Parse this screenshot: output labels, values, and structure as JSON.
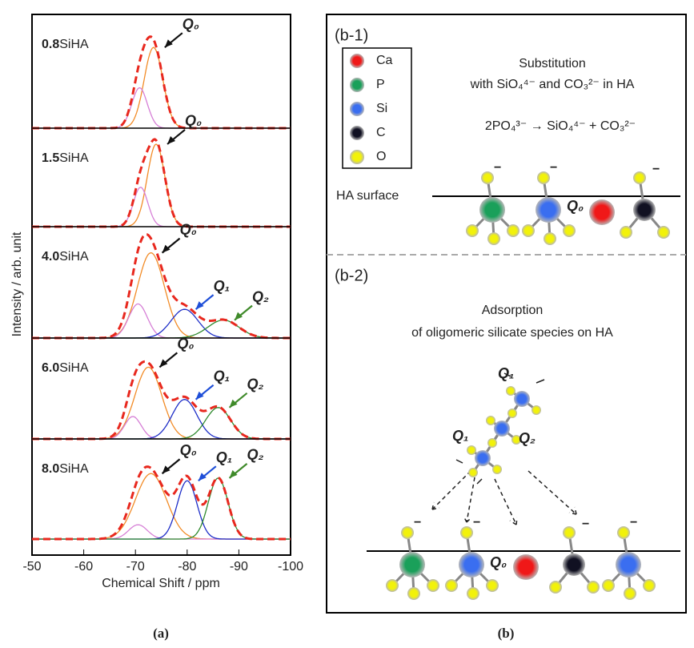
{
  "panel_a": {
    "xlabel": "Chemical Shift / ppm",
    "ylabel": "Intensity / arb. unit",
    "xlim": [
      -50,
      -100
    ],
    "xticks": [
      -50,
      -60,
      -70,
      -80,
      -90,
      -100
    ],
    "fit_color": "#e8281e",
    "caption": "(a)",
    "spectra": [
      {
        "amount": "0.8",
        "suffix": "SiHA",
        "peaks": [
          {
            "label": "Q₀",
            "label_color": "#111111",
            "center": -73.5,
            "height": 0.9,
            "width": 1.8,
            "color": "#f28c28"
          },
          {
            "center": -70.8,
            "height": 0.45,
            "width": 1.5,
            "color": "#d67fd6"
          }
        ]
      },
      {
        "amount": "1.5",
        "suffix": "SiHA",
        "peaks": [
          {
            "label": "Q₀",
            "label_color": "#111111",
            "center": -74,
            "height": 0.92,
            "width": 1.7,
            "color": "#f28c28"
          },
          {
            "center": -71,
            "height": 0.44,
            "width": 1.4,
            "color": "#d67fd6"
          }
        ]
      },
      {
        "amount": "4.0",
        "suffix": "SiHA",
        "peaks": [
          {
            "label": "Q₀",
            "label_color": "#111111",
            "center": -73,
            "height": 0.95,
            "width": 2.6,
            "color": "#f28c28"
          },
          {
            "center": -70.5,
            "height": 0.38,
            "width": 1.8,
            "color": "#d67fd6"
          },
          {
            "label": "Q₁",
            "label_color": "#1f4fd8",
            "center": -79.5,
            "height": 0.32,
            "width": 2.6,
            "color": "#1f2fc8"
          },
          {
            "label": "Q₂",
            "label_color": "#3f8a2a",
            "center": -87,
            "height": 0.2,
            "width": 3,
            "color": "#2f8a2f"
          }
        ]
      },
      {
        "amount": "6.0",
        "suffix": "SiHA",
        "peaks": [
          {
            "label": "Q₀",
            "label_color": "#111111",
            "center": -72.5,
            "height": 0.8,
            "width": 2.6,
            "color": "#f28c28"
          },
          {
            "center": -69.5,
            "height": 0.25,
            "width": 1.6,
            "color": "#d67fd6"
          },
          {
            "label": "Q₁",
            "label_color": "#1f4fd8",
            "center": -79.5,
            "height": 0.44,
            "width": 2.4,
            "color": "#1f2fc8"
          },
          {
            "label": "Q₂",
            "label_color": "#3f8a2a",
            "center": -86,
            "height": 0.35,
            "width": 2.4,
            "color": "#2f8a2f"
          }
        ]
      },
      {
        "amount": "8.0",
        "suffix": "SiHA",
        "peaks": [
          {
            "label": "Q₀",
            "label_color": "#111111",
            "center": -73,
            "height": 0.73,
            "width": 3,
            "color": "#f28c28"
          },
          {
            "center": -70.5,
            "height": 0.16,
            "width": 1.8,
            "color": "#d67fd6"
          },
          {
            "label": "Q₁",
            "label_color": "#1f4fd8",
            "center": -80,
            "height": 0.65,
            "width": 1.9,
            "color": "#1f2fc8"
          },
          {
            "label": "Q₂",
            "label_color": "#3f8a2a",
            "center": -86,
            "height": 0.68,
            "width": 1.9,
            "color": "#2f8a2f"
          }
        ]
      }
    ]
  },
  "panel_b": {
    "caption": "(b)",
    "legend": [
      {
        "label": "Ca",
        "color": "#f01818"
      },
      {
        "label": "P",
        "color": "#1aa05a"
      },
      {
        "label": "Si",
        "color": "#3a6ef0"
      },
      {
        "label": "C",
        "color": "#111122"
      },
      {
        "label": "O",
        "color": "#f2f20a"
      }
    ],
    "charge": "−",
    "part1": {
      "label": "(b-1)",
      "title": "Substitution",
      "subtitle": "with SiO₄⁴⁻ and CO₃²⁻ in HA",
      "equation": "2PO₄³⁻ → SiO₄⁴⁻ + CO₃²⁻",
      "surface": "HA surface",
      "site": "Q₀"
    },
    "part2": {
      "label": "(b-2)",
      "title": "Adsorption",
      "subtitle": "of oligomeric silicate species on HA",
      "q_top": "Q₁",
      "q_mid": "Q₂",
      "q_end": "Q₁",
      "site": "Q₀"
    }
  }
}
